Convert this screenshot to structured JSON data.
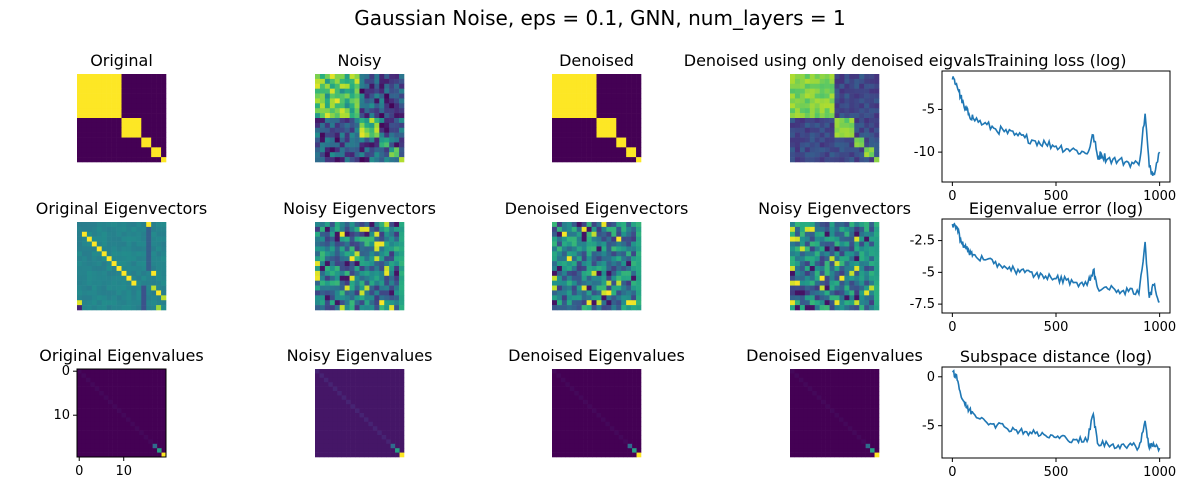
{
  "figure": {
    "suptitle": "Gaussian Noise, eps = 0.1, GNN, num_layers = 1"
  },
  "colors": {
    "viridis": [
      "#440154",
      "#472d7b",
      "#3b528b",
      "#2c728e",
      "#21918c",
      "#28ae80",
      "#5ec962",
      "#addc30",
      "#fde725"
    ],
    "line": "#1f77b4"
  },
  "chart_data": [
    {
      "id": "original",
      "type": "heatmap",
      "title": "Original",
      "size": 18,
      "pattern": "blocks",
      "blocks": [
        9,
        4,
        2,
        2,
        1
      ],
      "noise": 0
    },
    {
      "id": "noisy",
      "type": "heatmap",
      "title": "Noisy",
      "size": 18,
      "pattern": "blocks",
      "blocks": [
        9,
        4,
        2,
        2,
        1
      ],
      "noise": 0.22
    },
    {
      "id": "denoised",
      "type": "heatmap",
      "title": "Denoised",
      "size": 18,
      "pattern": "blocks",
      "blocks": [
        9,
        4,
        2,
        2,
        1
      ],
      "noise": 0
    },
    {
      "id": "denoised-eigvals",
      "type": "heatmap",
      "title": "Denoised using only denoised eigvals",
      "size": 18,
      "pattern": "blocks-soft",
      "blocks": [
        9,
        4,
        2,
        2,
        1
      ],
      "noise": 0.08
    },
    {
      "id": "training-loss",
      "type": "line",
      "title": "Training loss (log)",
      "xlim": [
        -50,
        1050
      ],
      "ylim": [
        -13.5,
        -0.5
      ],
      "xticks": [
        0,
        500,
        1000
      ],
      "yticks": [
        -5,
        -10
      ],
      "x": [
        0,
        20,
        40,
        60,
        80,
        100,
        150,
        200,
        250,
        300,
        350,
        400,
        450,
        500,
        550,
        600,
        650,
        680,
        700,
        720,
        750,
        800,
        850,
        900,
        930,
        950,
        970,
        1000
      ],
      "y": [
        -1.5,
        -2.0,
        -3.5,
        -5.0,
        -5.5,
        -6.0,
        -6.7,
        -7.2,
        -7.6,
        -8.0,
        -8.3,
        -8.7,
        -9.0,
        -9.3,
        -9.6,
        -9.8,
        -10.2,
        -8.0,
        -10.5,
        -10.3,
        -10.8,
        -11.0,
        -11.2,
        -11.5,
        -5.5,
        -11.8,
        -12.5,
        -10.0
      ]
    },
    {
      "id": "original-eigenvectors",
      "type": "heatmap",
      "title": "Original Eigenvectors",
      "size": 18,
      "pattern": "eigvec-orig",
      "noise": 0
    },
    {
      "id": "noisy-eigenvectors",
      "type": "heatmap",
      "title": "Noisy Eigenvectors",
      "size": 18,
      "pattern": "random",
      "noise": 0
    },
    {
      "id": "denoised-eigenvectors",
      "type": "heatmap",
      "title": "Denoised Eigenvectors",
      "size": 18,
      "pattern": "random-b",
      "noise": 0
    },
    {
      "id": "noisy-eigenvectors-2",
      "type": "heatmap",
      "title": "Noisy Eigenvectors",
      "size": 18,
      "pattern": "random",
      "noise": 0
    },
    {
      "id": "eigenvalue-error",
      "type": "line",
      "title": "Eigenvalue error (log)",
      "xlim": [
        -50,
        1050
      ],
      "ylim": [
        -8.2,
        -0.8
      ],
      "xticks": [
        0,
        500,
        1000
      ],
      "yticks": [
        -2.5,
        -5.0,
        -7.5
      ],
      "x": [
        0,
        20,
        40,
        60,
        80,
        100,
        150,
        200,
        250,
        300,
        350,
        400,
        450,
        500,
        550,
        600,
        650,
        680,
        700,
        750,
        800,
        850,
        900,
        930,
        950,
        970,
        1000
      ],
      "y": [
        -1.2,
        -1.4,
        -2.4,
        -3.0,
        -3.4,
        -3.6,
        -4.0,
        -4.3,
        -4.5,
        -4.8,
        -5.0,
        -5.2,
        -5.3,
        -5.5,
        -5.6,
        -5.8,
        -6.0,
        -4.8,
        -6.2,
        -6.3,
        -6.4,
        -6.5,
        -6.7,
        -2.6,
        -7.0,
        -6.0,
        -7.3
      ]
    },
    {
      "id": "original-eigenvalues",
      "type": "heatmap",
      "title": "Original Eigenvalues",
      "size": 20,
      "pattern": "diag",
      "diag_bg": 0.0,
      "noise": 0,
      "xticks": [
        0,
        10
      ],
      "yticks": [
        0,
        10
      ]
    },
    {
      "id": "noisy-eigenvalues",
      "type": "heatmap",
      "title": "Noisy Eigenvalues",
      "size": 20,
      "pattern": "diag",
      "diag_bg": 0.06,
      "noise": 0
    },
    {
      "id": "denoised-eigenvalues",
      "type": "heatmap",
      "title": "Denoised Eigenvalues",
      "size": 20,
      "pattern": "diag",
      "diag_bg": 0.0,
      "noise": 0
    },
    {
      "id": "denoised-eigenvalues-2",
      "type": "heatmap",
      "title": "Denoised Eigenvalues",
      "size": 20,
      "pattern": "diag",
      "diag_bg": 0.0,
      "noise": 0
    },
    {
      "id": "subspace-distance",
      "type": "line",
      "title": "Subspace distance (log)",
      "xlim": [
        -50,
        1050
      ],
      "ylim": [
        -8.3,
        1.0
      ],
      "xticks": [
        0,
        500,
        1000
      ],
      "yticks": [
        0,
        -5
      ],
      "x": [
        0,
        20,
        40,
        60,
        80,
        100,
        150,
        200,
        250,
        300,
        350,
        400,
        450,
        500,
        550,
        600,
        650,
        680,
        700,
        750,
        800,
        850,
        900,
        930,
        950,
        970,
        1000
      ],
      "y": [
        0.5,
        0.2,
        -1.8,
        -2.8,
        -3.4,
        -3.7,
        -4.3,
        -4.8,
        -5.1,
        -5.4,
        -5.6,
        -5.8,
        -6.0,
        -6.2,
        -6.3,
        -6.4,
        -6.6,
        -3.8,
        -6.8,
        -6.9,
        -7.0,
        -7.0,
        -7.2,
        -4.5,
        -7.3,
        -6.8,
        -7.3
      ]
    }
  ]
}
